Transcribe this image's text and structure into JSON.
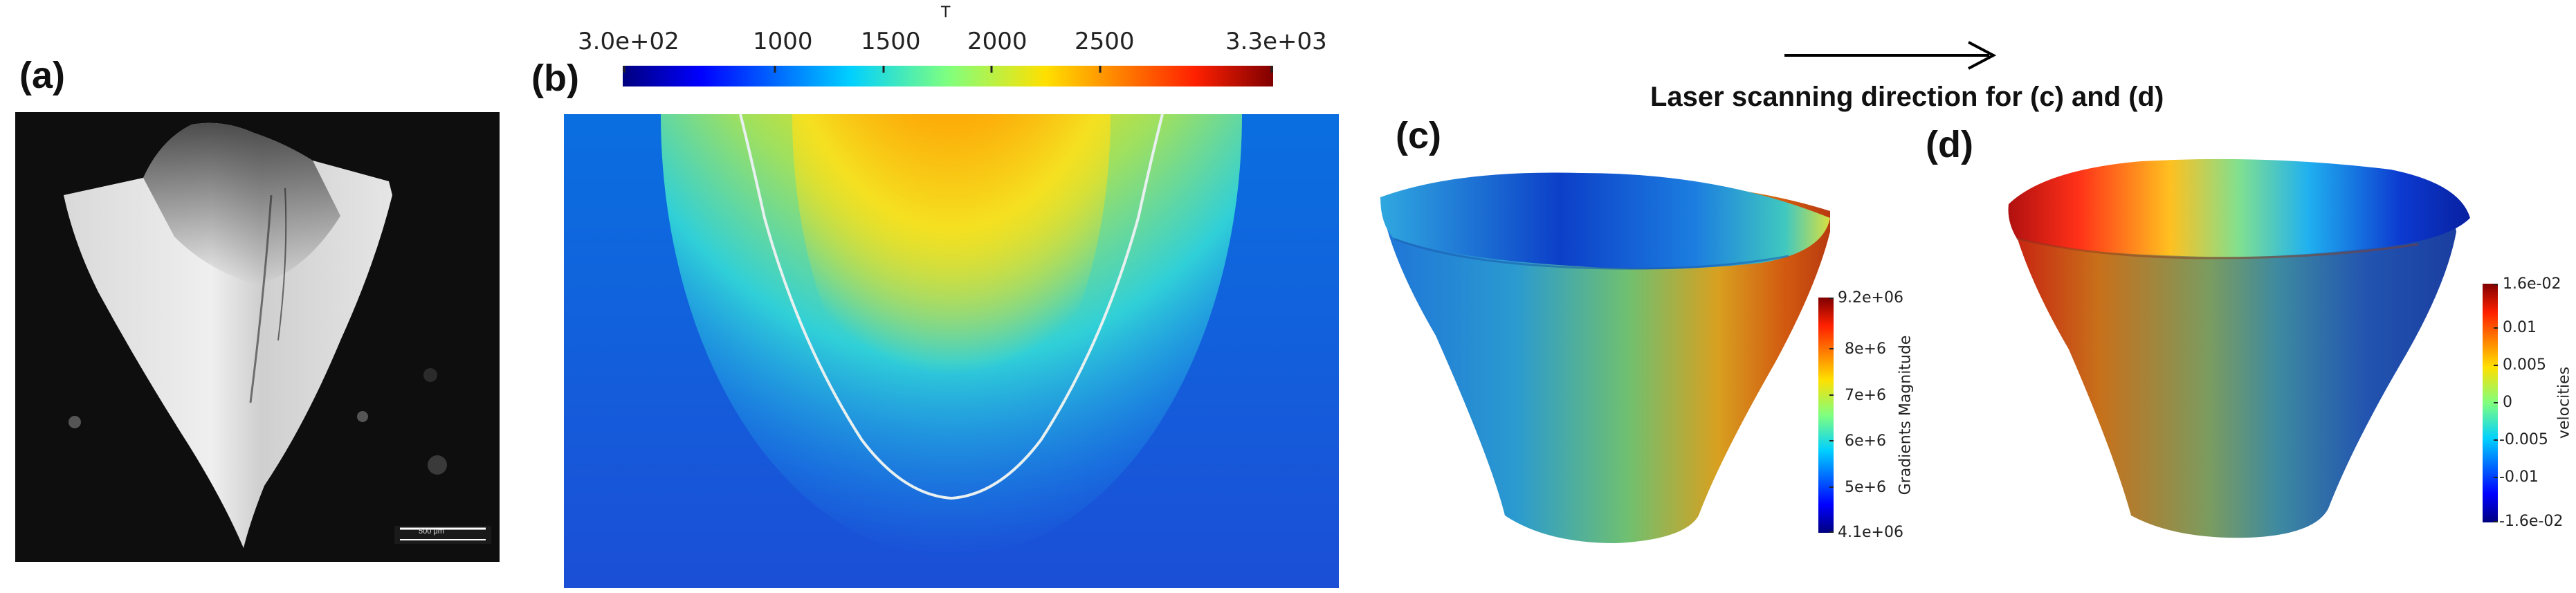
{
  "panels": {
    "a": {
      "label": "(a)",
      "scale_bar_text": "500 μm"
    },
    "b": {
      "label": "(b)",
      "colorbar": {
        "title": "T",
        "min_label": "3.0e+02",
        "max_label": "3.3e+03",
        "tick_labels": [
          "1000",
          "1500",
          "2000",
          "2500"
        ]
      }
    },
    "c": {
      "label": "(c)",
      "colorbar": {
        "title": "Gradients Magnitude",
        "max_label": "9.2e+06",
        "min_label": "4.1e+06",
        "tick_labels": [
          "8e+6",
          "7e+6",
          "6e+6",
          "5e+6"
        ]
      }
    },
    "d": {
      "label": "(d)",
      "colorbar": {
        "title": "velocities",
        "max_label": "1.6e-02",
        "min_label": "-1.6e-02",
        "tick_labels": [
          "0.01",
          "0.005",
          "0",
          "-0.005",
          "-0.01"
        ]
      }
    }
  },
  "scan_direction_text": "Laser scanning direction for (c) and (d)",
  "colors": {
    "jet_dark_blue": "#00007f",
    "jet_blue": "#0040ff",
    "jet_cyan": "#00d0ff",
    "jet_green": "#7fff7f",
    "jet_yellow": "#ffe000",
    "jet_red": "#ff2000",
    "jet_dark_red": "#7f0000"
  }
}
